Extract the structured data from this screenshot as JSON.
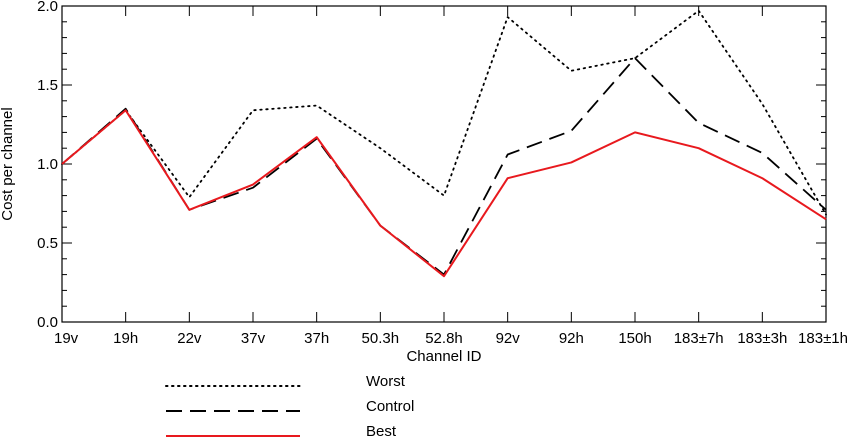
{
  "chart_data": {
    "type": "line",
    "title": "",
    "xlabel": "Channel ID",
    "ylabel": "Cost per channel",
    "ylim": [
      0.0,
      2.0
    ],
    "yticks": [
      "0.0",
      "0.5",
      "1.0",
      "1.5",
      "2.0"
    ],
    "categories": [
      "19v",
      "19h",
      "22v",
      "37v",
      "37h",
      "50.3h",
      "52.8h",
      "92v",
      "92h",
      "150h",
      "183±7h",
      "183±3h",
      "183±1h"
    ],
    "grid": false,
    "legend_position": "bottom",
    "series": [
      {
        "name": "Worst",
        "style": "dotted",
        "color": "#000000",
        "values": [
          1.0,
          1.34,
          0.79,
          1.34,
          1.37,
          1.1,
          0.8,
          1.93,
          1.59,
          1.67,
          1.97,
          1.38,
          0.68
        ]
      },
      {
        "name": "Control",
        "style": "dashed",
        "color": "#000000",
        "values": [
          1.0,
          1.35,
          0.71,
          0.85,
          1.16,
          0.61,
          0.3,
          1.06,
          1.21,
          1.67,
          1.26,
          1.07,
          0.71
        ]
      },
      {
        "name": "Best",
        "style": "solid",
        "color": "#e8191e",
        "values": [
          1.0,
          1.34,
          0.71,
          0.87,
          1.17,
          0.61,
          0.29,
          0.91,
          1.01,
          1.2,
          1.1,
          0.91,
          0.65
        ]
      }
    ]
  }
}
